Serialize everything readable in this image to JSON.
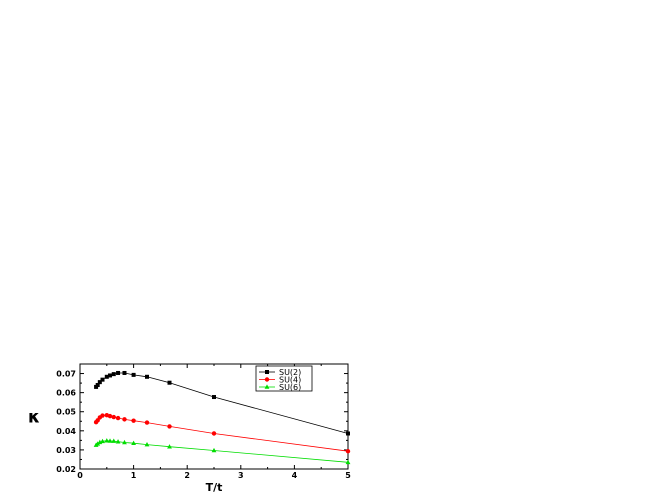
{
  "chart_data": {
    "type": "line",
    "xlabel": "T/t",
    "ylabel": "κ",
    "xlim": [
      0,
      5
    ],
    "ylim": [
      0.02,
      0.075
    ],
    "x_ticks": [
      0,
      1,
      2,
      3,
      4,
      5
    ],
    "y_ticks": [
      0.02,
      0.03,
      0.04,
      0.05,
      0.06,
      0.07
    ],
    "x_tick_labels": [
      "0",
      "1",
      "2",
      "3",
      "4",
      "5"
    ],
    "y_tick_labels": [
      "0.02",
      "0.03",
      "0.04",
      "0.05",
      "0.06",
      "0.07"
    ],
    "legend_position": "top-right",
    "grid": false,
    "series": [
      {
        "name": "SU(2)",
        "color": "#000000",
        "marker": "square",
        "points": [
          [
            0.3,
            0.063
          ],
          [
            0.33,
            0.064
          ],
          [
            0.37,
            0.0655
          ],
          [
            0.42,
            0.0668
          ],
          [
            0.5,
            0.0683
          ],
          [
            0.56,
            0.069
          ],
          [
            0.63,
            0.0697
          ],
          [
            0.71,
            0.0703
          ],
          [
            0.83,
            0.0703
          ],
          [
            1.0,
            0.0693
          ],
          [
            1.25,
            0.0683
          ],
          [
            1.67,
            0.0652
          ],
          [
            2.5,
            0.0577
          ],
          [
            5.0,
            0.0386
          ]
        ]
      },
      {
        "name": "SU(4)",
        "color": "#ff0000",
        "marker": "circle",
        "points": [
          [
            0.3,
            0.0445
          ],
          [
            0.33,
            0.0455
          ],
          [
            0.37,
            0.047
          ],
          [
            0.42,
            0.048
          ],
          [
            0.5,
            0.0482
          ],
          [
            0.56,
            0.0477
          ],
          [
            0.63,
            0.0472
          ],
          [
            0.71,
            0.0467
          ],
          [
            0.83,
            0.046
          ],
          [
            1.0,
            0.0453
          ],
          [
            1.25,
            0.0443
          ],
          [
            1.67,
            0.0423
          ],
          [
            2.5,
            0.0386
          ],
          [
            5.0,
            0.0293
          ]
        ]
      },
      {
        "name": "SU(6)",
        "color": "#00dd00",
        "marker": "triangle",
        "points": [
          [
            0.3,
            0.0325
          ],
          [
            0.33,
            0.0332
          ],
          [
            0.37,
            0.034
          ],
          [
            0.42,
            0.0345
          ],
          [
            0.5,
            0.0348
          ],
          [
            0.56,
            0.0347
          ],
          [
            0.63,
            0.0346
          ],
          [
            0.71,
            0.0343
          ],
          [
            0.83,
            0.0339
          ],
          [
            1.0,
            0.0335
          ],
          [
            1.25,
            0.0328
          ],
          [
            1.67,
            0.0317
          ],
          [
            2.5,
            0.0297
          ],
          [
            5.0,
            0.0235
          ]
        ]
      }
    ]
  }
}
